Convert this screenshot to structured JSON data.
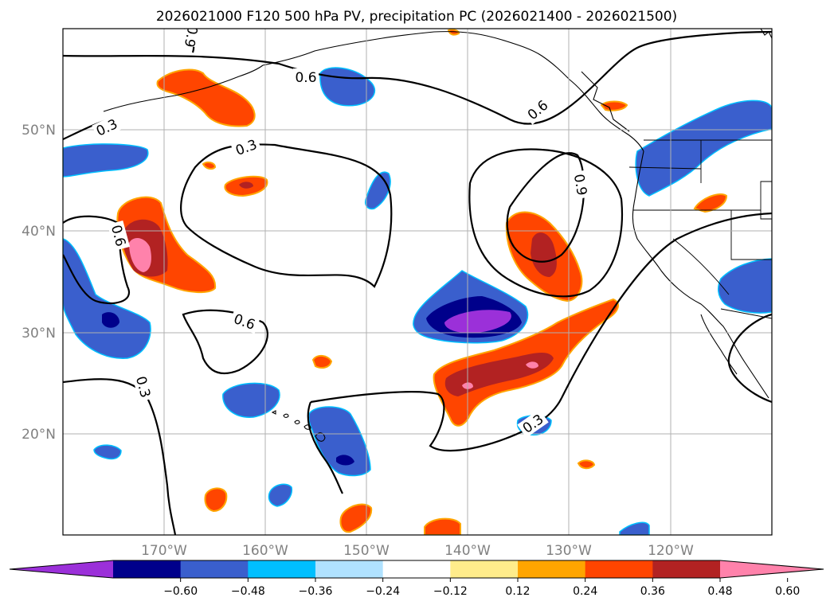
{
  "title": "2026021000 F120 500 hPa PV, precipitation PC (2026021400 - 2026021500)",
  "map": {
    "lon_range": [
      -180,
      -110
    ],
    "lat_range": [
      10,
      60
    ],
    "lat_labels": [
      "20°N",
      "30°N",
      "40°N",
      "50°N"
    ],
    "lon_labels": [
      "170°W",
      "160°W",
      "150°W",
      "140°W",
      "130°W",
      "120°W"
    ],
    "gridlines": true
  },
  "contour_labels": [
    "0.3",
    "0.6",
    "0.9"
  ],
  "colorbar": {
    "colors": [
      "#9b30d9",
      "#00008b",
      "#3a5fcd",
      "#00bfff",
      "#b0e2ff",
      "#ffffff",
      "#ffec8b",
      "#ffa500",
      "#ff4500",
      "#b22222",
      "#ff82ab"
    ],
    "ticks": [
      "−0.60",
      "−0.48",
      "−0.36",
      "−0.24",
      "−0.12",
      "0.12",
      "0.24",
      "0.36",
      "0.48",
      "0.60"
    ]
  }
}
